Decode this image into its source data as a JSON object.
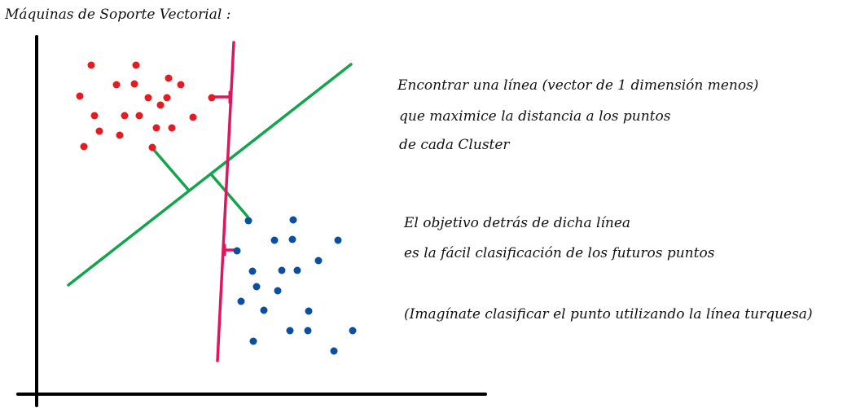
{
  "title": "Máquinas de Soporte Vectorial :",
  "notes": {
    "line1": "Encontrar una línea (vector de 1 dimensión menos)",
    "line2": "que maximice la distancia a los puntos",
    "line3": "de cada Cluster",
    "line4": "El objetivo detrás de dicha línea",
    "line5": "es la fácil clasificación de los futuros puntos",
    "line6": "(Imagínate clasificar el punto utilizando la línea turquesa)"
  },
  "colors": {
    "axes": "#000000",
    "red_points": "#e31b23",
    "blue_points": "#0a4fa0",
    "green_line": "#13a54e",
    "pink_line": "#e0155e"
  }
}
